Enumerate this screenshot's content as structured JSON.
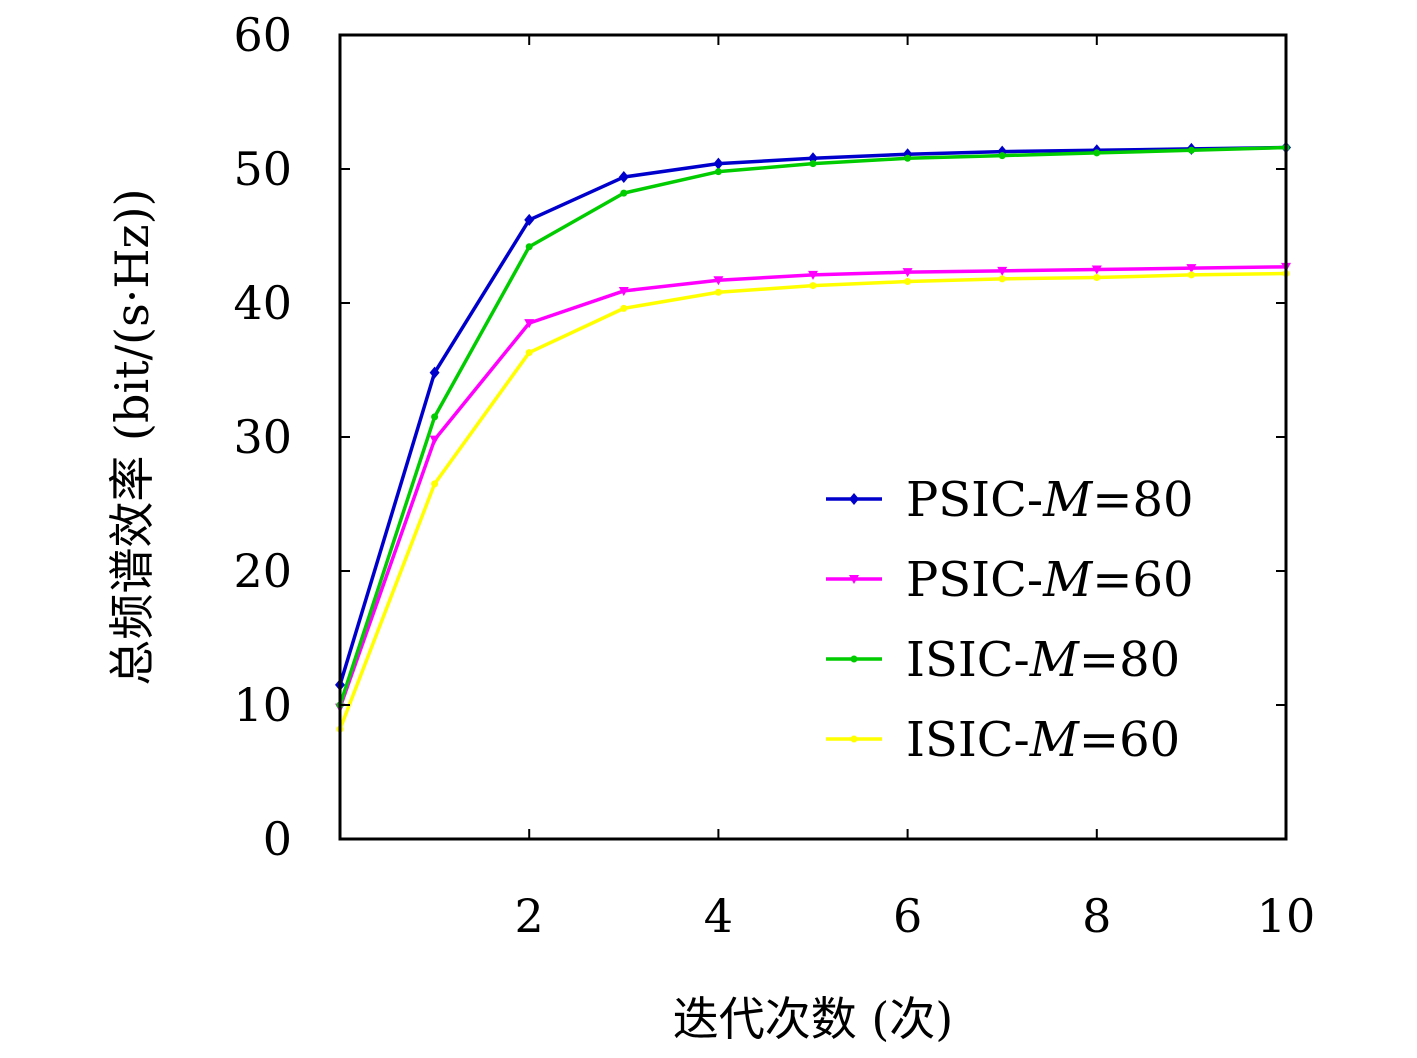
{
  "chart_data": {
    "type": "line",
    "xlabel": "迭代次数 (次)",
    "ylabel": "总频谱效率 (bit/(s·Hz))",
    "xlim": [
      0,
      10
    ],
    "ylim": [
      0,
      60
    ],
    "xticks": [
      2,
      4,
      6,
      8,
      10
    ],
    "yticks": [
      0,
      10,
      20,
      30,
      40,
      50,
      60
    ],
    "legend_position": "lower-right",
    "grid": false,
    "x": [
      0,
      1,
      2,
      3,
      4,
      5,
      6,
      7,
      8,
      9,
      10
    ],
    "series": [
      {
        "name": "PSIC-M=80",
        "prefix": "PSIC-",
        "italic": "M",
        "suffix": "=80",
        "color": "#0000cc",
        "marker": "diamond",
        "values": [
          11.5,
          34.8,
          46.2,
          49.4,
          50.4,
          50.8,
          51.1,
          51.3,
          51.4,
          51.5,
          51.6
        ]
      },
      {
        "name": "PSIC-M=60",
        "prefix": "PSIC-",
        "italic": "M",
        "suffix": "=60",
        "color": "#ff00ff",
        "marker": "triangle-down",
        "values": [
          9.8,
          29.8,
          38.5,
          40.9,
          41.7,
          42.1,
          42.3,
          42.4,
          42.5,
          42.6,
          42.7
        ]
      },
      {
        "name": "ISIC-M=80",
        "prefix": "ISIC-",
        "italic": "M",
        "suffix": "=80",
        "color": "#00cc00",
        "marker": "circle",
        "values": [
          10.0,
          31.5,
          44.2,
          48.2,
          49.8,
          50.4,
          50.8,
          51.0,
          51.2,
          51.4,
          51.6
        ]
      },
      {
        "name": "ISIC-M=60",
        "prefix": "ISIC-",
        "italic": "M",
        "suffix": "=60",
        "color": "#ffff00",
        "marker": "circle",
        "values": [
          8.2,
          26.5,
          36.3,
          39.6,
          40.8,
          41.3,
          41.6,
          41.8,
          41.9,
          42.1,
          42.2
        ]
      }
    ]
  }
}
